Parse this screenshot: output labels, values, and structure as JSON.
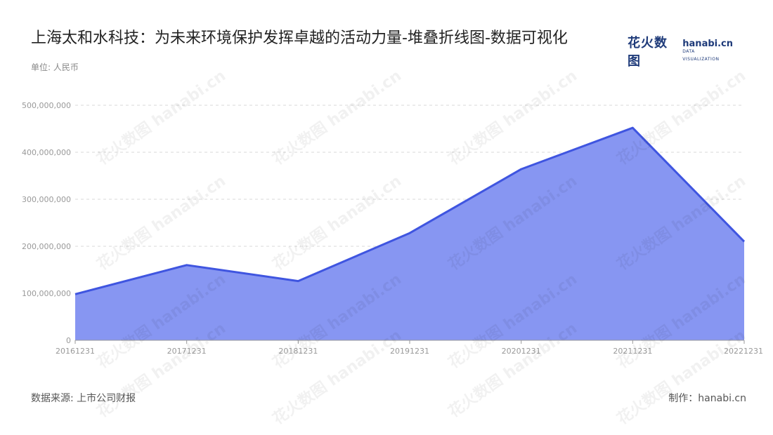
{
  "title": "上海太和水科技：为未来环境保护发挥卓越的活动力量-堆叠折线图-数据可视化",
  "unit_label": "单位: 人民币",
  "source": "数据来源: 上市公司财报",
  "credit": "制作：hanabi.cn",
  "logo": {
    "cn": "花火数图",
    "en": "hanabi.cn",
    "en_sub": "DATA VISUALIZATION"
  },
  "watermark": "花火数图 hanabi.cn",
  "colors": {
    "fill": "#8796f2",
    "line": "#3f55e0",
    "grid": "#d9d9d9",
    "axis": "#9a9a9a"
  },
  "chart_data": {
    "type": "area",
    "title": "上海太和水科技：为未来环境保护发挥卓越的活动力量-堆叠折线图-数据可视化",
    "ylabel": "单位: 人民币",
    "categories": [
      "20161231",
      "20171231",
      "20181231",
      "20191231",
      "20201231",
      "20211231",
      "20221231"
    ],
    "series": [
      {
        "values": [
          98000000,
          160000000,
          126000000,
          228000000,
          364000000,
          452000000,
          210000000
        ]
      }
    ],
    "y_ticks": [
      "0",
      "100,000,000",
      "200,000,000",
      "300,000,000",
      "400,000,000",
      "500,000,000"
    ],
    "ylim": [
      0,
      500000000
    ],
    "grid": true,
    "stacked": true
  }
}
